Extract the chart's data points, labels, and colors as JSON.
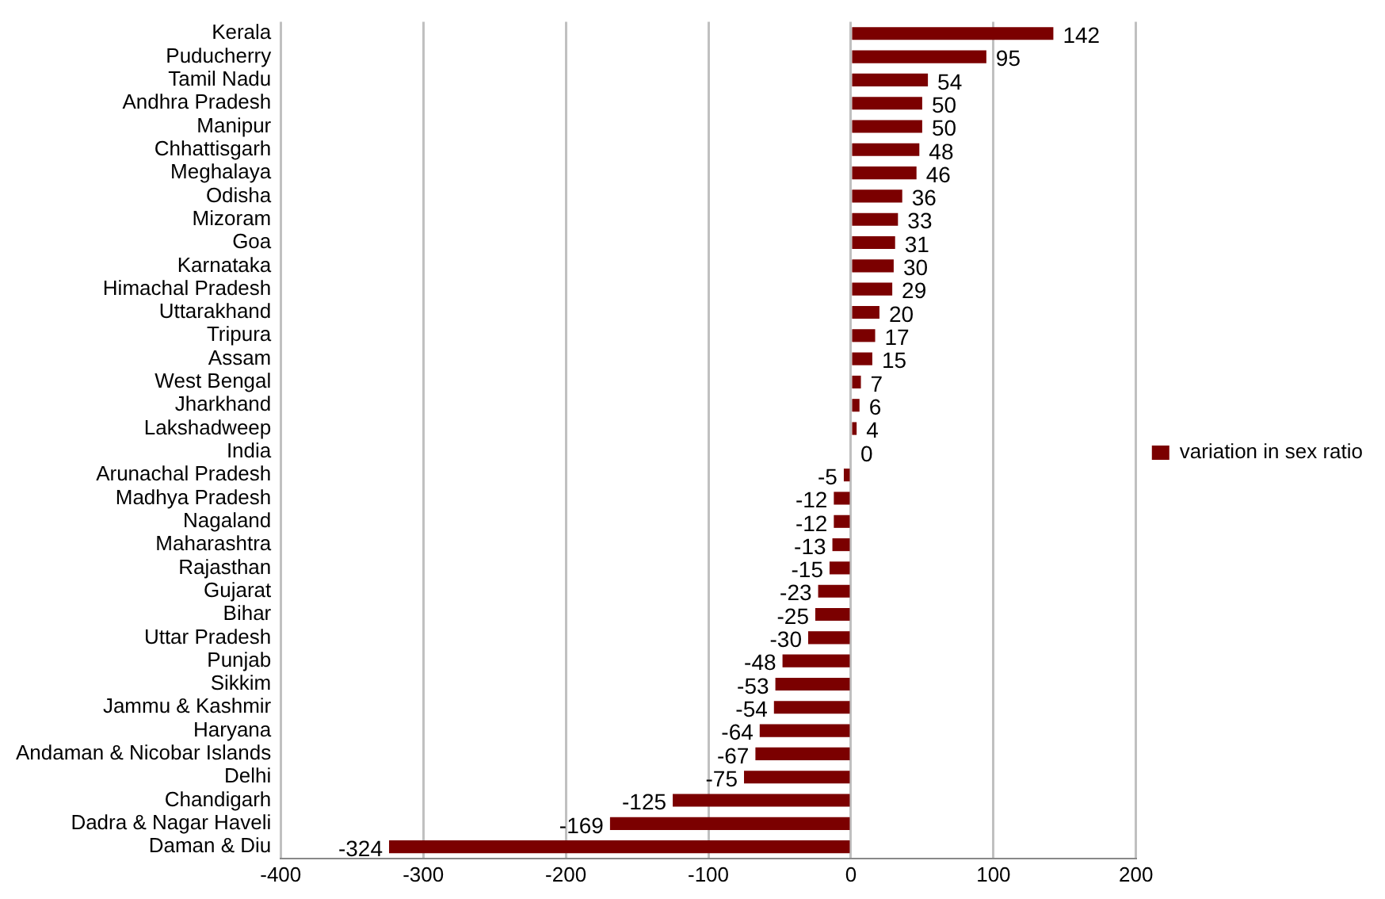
{
  "chart_data": {
    "type": "bar",
    "orientation": "horizontal",
    "categories": [
      "Kerala",
      "Puducherry",
      "Tamil Nadu",
      "Andhra Pradesh",
      "Manipur",
      "Chhattisgarh",
      "Meghalaya",
      "Odisha",
      "Mizoram",
      "Goa",
      "Karnataka",
      "Himachal Pradesh",
      "Uttarakhand",
      "Tripura",
      "Assam",
      "West Bengal",
      "Jharkhand",
      "Lakshadweep",
      "India",
      "Arunachal Pradesh",
      "Madhya Pradesh",
      "Nagaland",
      "Maharashtra",
      "Rajasthan",
      "Gujarat",
      "Bihar",
      "Uttar Pradesh",
      "Punjab",
      "Sikkim",
      "Jammu & Kashmir",
      "Haryana",
      "Andaman & Nicobar Islands",
      "Delhi",
      "Chandigarh",
      "Dadra & Nagar Haveli",
      "Daman & Diu"
    ],
    "series": [
      {
        "name": "variation in sex ratio",
        "color": "#7b0000",
        "values": [
          142,
          95,
          54,
          50,
          50,
          48,
          46,
          36,
          33,
          31,
          30,
          29,
          20,
          17,
          15,
          7,
          6,
          4,
          0,
          -5,
          -12,
          -12,
          -13,
          -15,
          -23,
          -25,
          -30,
          -48,
          -53,
          -54,
          -64,
          -67,
          -75,
          -125,
          -169,
          -324
        ]
      }
    ],
    "xlim": [
      -400,
      200
    ],
    "xticks": [
      -400,
      -300,
      -200,
      -100,
      0,
      100,
      200
    ],
    "grid": "x",
    "legend": "right",
    "data_labels": true
  }
}
